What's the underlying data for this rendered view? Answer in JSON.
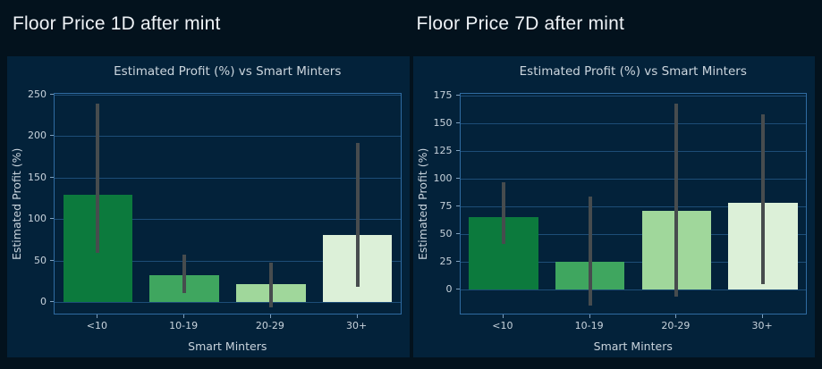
{
  "headers": [
    {
      "label": "Floor Price 1D after mint"
    },
    {
      "label": "Floor Price 7D after mint"
    }
  ],
  "colors": {
    "background": "#03121d",
    "panel_background": "#03223a",
    "grid": "#1d4d77",
    "spine": "#2f6ba1",
    "tick_text": "#c8d3dc",
    "title_text": "#ccd6de",
    "header_text": "#eef2f6",
    "error_bar": "#474c4e"
  },
  "chart_data": [
    {
      "type": "bar",
      "title": "Estimated Profit (%) vs Smart Minters",
      "xlabel": "Smart Minters",
      "ylabel": "Estimated Profit (%)",
      "categories": [
        "<10",
        "10-19",
        "20-29",
        "30+"
      ],
      "values": [
        130,
        33,
        22,
        81
      ],
      "error_low": [
        60,
        11,
        -6,
        19
      ],
      "error_high": [
        239,
        57,
        48,
        192
      ],
      "yticks": [
        0,
        50,
        100,
        150,
        200,
        250
      ],
      "ylim": [
        -13.5,
        251
      ],
      "bar_colors": [
        "#0c7a3d",
        "#3fa65f",
        "#a0d79b",
        "#dcf0d8"
      ],
      "grid": true,
      "legend": false
    },
    {
      "type": "bar",
      "title": "Estimated Profit (%) vs Smart Minters",
      "xlabel": "Smart Minters",
      "ylabel": "Estimated Profit (%)",
      "categories": [
        "<10",
        "10-19",
        "20-29",
        "30+"
      ],
      "values": [
        65,
        25,
        71,
        78
      ],
      "error_low": [
        41,
        -15,
        -7,
        5
      ],
      "error_high": [
        97,
        84,
        168,
        158
      ],
      "yticks": [
        0,
        25,
        50,
        75,
        100,
        125,
        150,
        175
      ],
      "ylim": [
        -22,
        176.5
      ],
      "bar_colors": [
        "#0c7a3d",
        "#3fa65f",
        "#a0d79b",
        "#dcf0d8"
      ],
      "grid": true,
      "legend": false
    }
  ]
}
